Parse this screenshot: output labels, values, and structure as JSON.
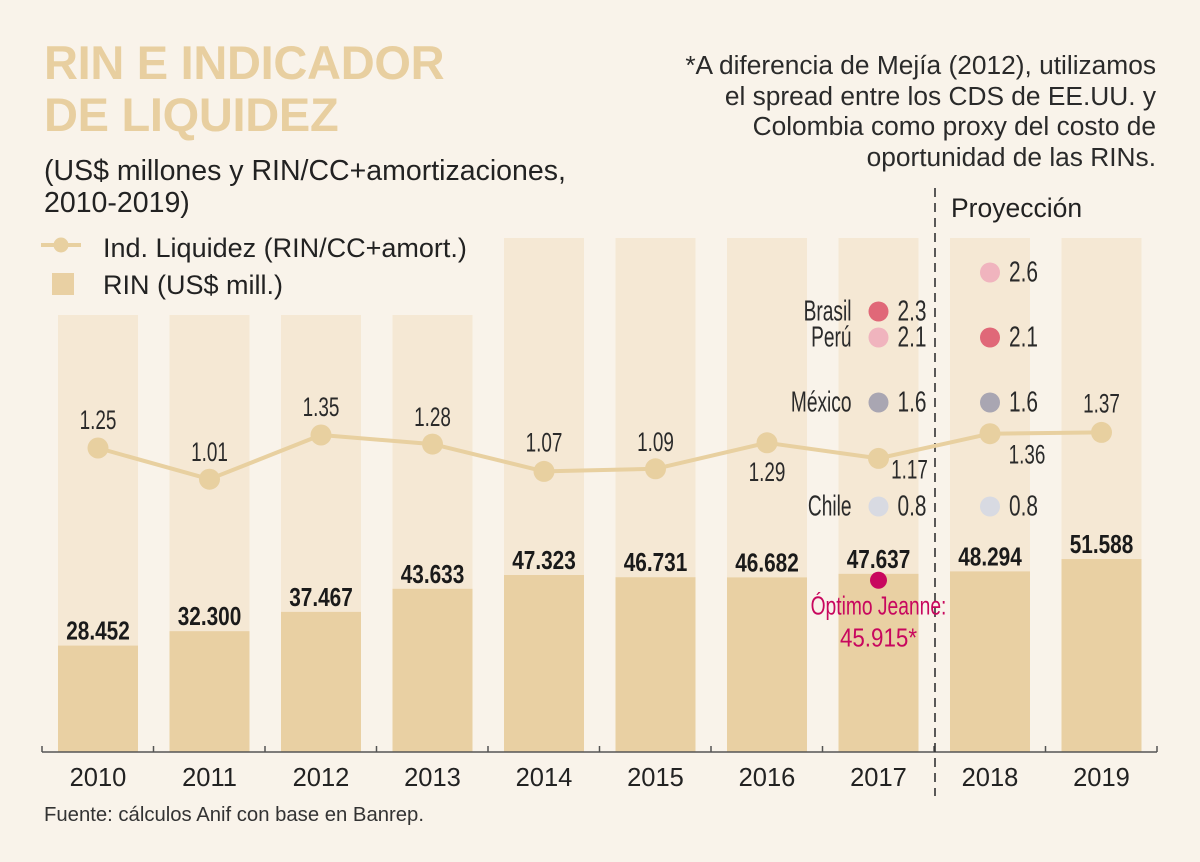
{
  "header": {
    "title_lines": [
      "RIN E INDICADOR",
      "DE LIQUIDEZ"
    ],
    "subtitle_lines": [
      "(US$ millones y RIN/CC+amortizaciones,",
      "2010-2019)"
    ]
  },
  "note": {
    "lines": [
      "*A diferencia de Mejía (2012), utilizamos",
      "el spread entre los CDS de EE.UU. y",
      "Colombia como proxy del costo de",
      "oportunidad de las RINs."
    ]
  },
  "legend": {
    "line_label": "Ind. Liquidez (RIN/CC+amort.)",
    "bar_label": "RIN (US$ mill.)",
    "line_icon": "line-with-dot-icon",
    "bar_icon": "square-swatch-icon"
  },
  "source": "Fuente: cálculos Anif con base en Banrep.",
  "colors": {
    "background": "#f9f3ea",
    "column_background": "#f5e8d4",
    "bar": "#e9d0a3",
    "line": "#e8d0a0",
    "title": "#e8cfa0",
    "text": "#222222",
    "axis": "#555555",
    "projection_line": "#333333"
  },
  "chart_data": {
    "type": "bar",
    "title": "RIN E INDICADOR DE LIQUIDEZ",
    "subtitle": "(US$ millones y RIN/CC+amortizaciones, 2010-2019)",
    "xlabel": "",
    "ylabel": "",
    "grid": false,
    "legend_position": "top-left",
    "categories": [
      "2010",
      "2011",
      "2012",
      "2013",
      "2014",
      "2015",
      "2016",
      "2017",
      "2018",
      "2019"
    ],
    "series": [
      {
        "name": "RIN (US$ mill.)",
        "type": "bar",
        "values": [
          28452,
          32300,
          37467,
          43633,
          47323,
          46731,
          46682,
          47637,
          48294,
          51588
        ],
        "labels": [
          "28.452",
          "32.300",
          "37.467",
          "43.633",
          "47.323",
          "46.731",
          "46.682",
          "47.637",
          "48.294",
          "51.588"
        ]
      },
      {
        "name": "Ind. Liquidez (RIN/CC+amort.)",
        "type": "line",
        "values": [
          1.25,
          1.01,
          1.35,
          1.28,
          1.07,
          1.09,
          1.29,
          1.17,
          1.36,
          1.37
        ],
        "labels": [
          "1.25",
          "1.01",
          "1.35",
          "1.28",
          "1.07",
          "1.09",
          "1.29",
          "1.17",
          "1.36",
          "1.37"
        ]
      }
    ],
    "projection": {
      "label": "Proyección",
      "from_category": "2018"
    },
    "country_comparison": {
      "metric": "Ind. Liquidez (RIN/CC+amort.)",
      "categories": [
        "2017",
        "2018"
      ],
      "countries": [
        {
          "name": "Brasil",
          "values": [
            2.3,
            2.1
          ],
          "labels": [
            "2.3",
            "2.1"
          ],
          "color": "#e06878"
        },
        {
          "name": "Perú",
          "values": [
            2.1,
            2.6
          ],
          "labels": [
            "2.1",
            "2.6"
          ],
          "color": "#f0b4be"
        },
        {
          "name": "México",
          "values": [
            1.6,
            1.6
          ],
          "labels": [
            "1.6",
            "1.6"
          ],
          "color": "#a9a6b2"
        },
        {
          "name": "Chile",
          "values": [
            0.8,
            0.8
          ],
          "labels": [
            "0.8",
            "0.8"
          ],
          "color": "#d8dae2"
        }
      ]
    },
    "annotation": {
      "category": "2017",
      "label": "Óptimo Jeanne:",
      "value": 45915,
      "value_label": "45.915*",
      "color": "#c8075e"
    }
  }
}
